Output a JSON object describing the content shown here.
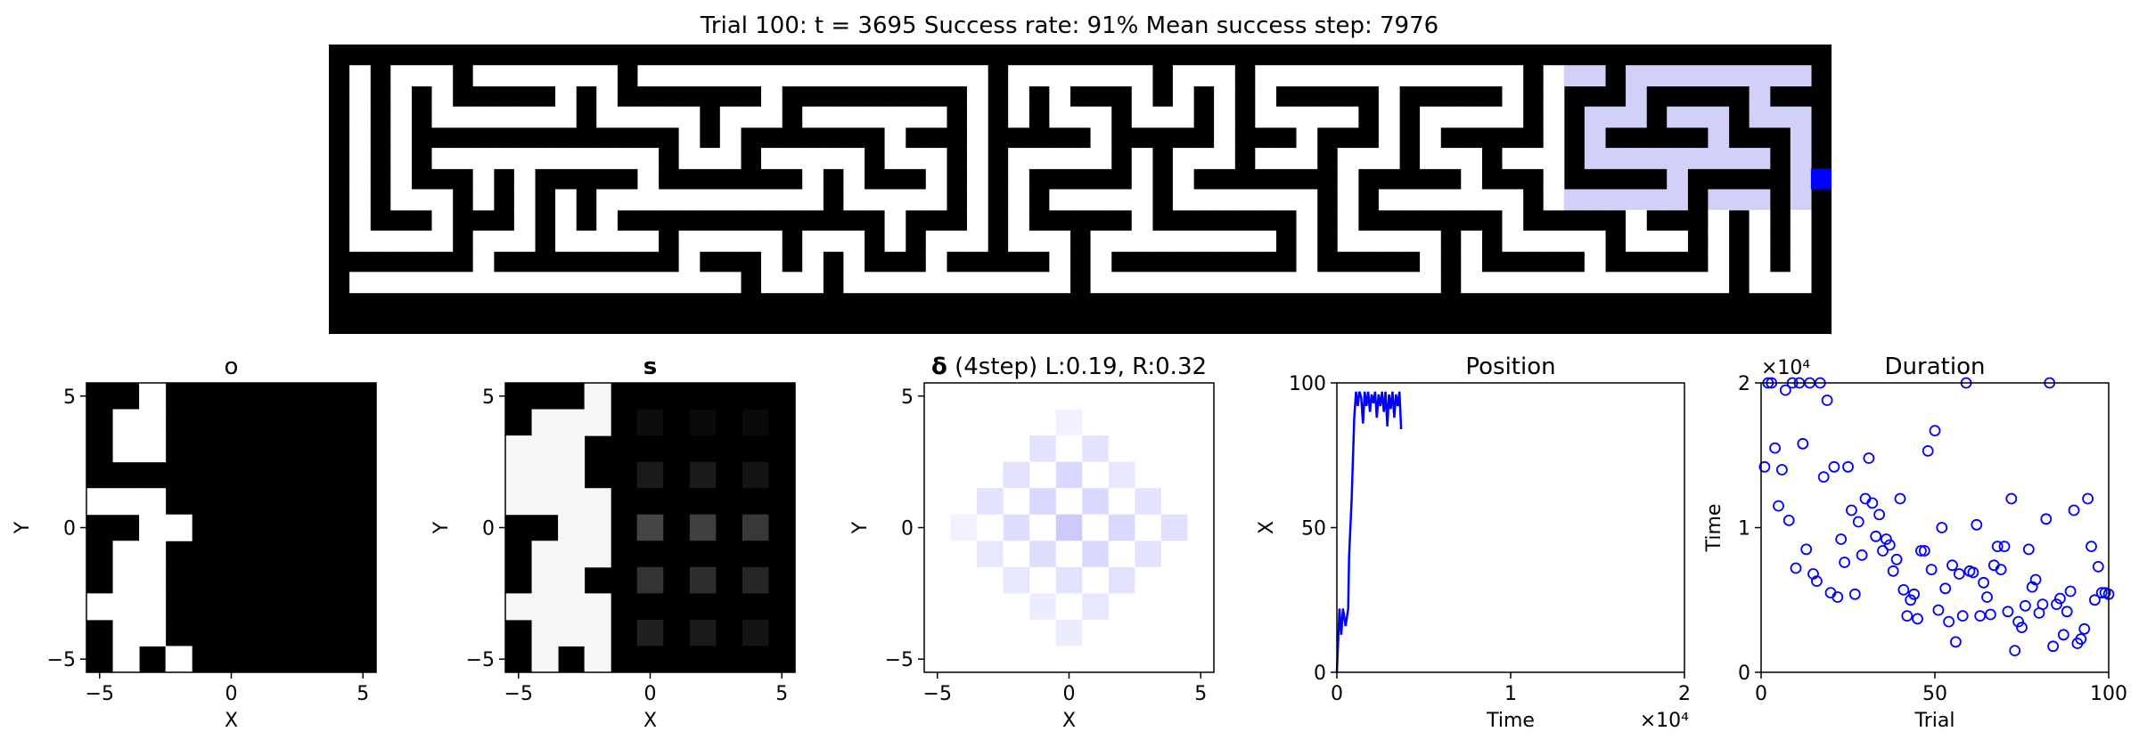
{
  "header": {
    "title": "Trial 100: t = 3695  Success rate: 91%  Mean success step: 7976"
  },
  "colors": {
    "wall": "#000000",
    "open": "#ffffff",
    "trace": "#d0d0f8",
    "agent": "#0000ff",
    "series": "#0000ff"
  },
  "panels": {
    "o": {
      "title": "o"
    },
    "s": {
      "title": "s"
    },
    "delta": {
      "title_bold": "δ",
      "title_rest": " (4step) L:0.19, R:0.32"
    },
    "position": {
      "title": "Position"
    },
    "duration": {
      "title": "Duration"
    }
  },
  "chart_data": [
    {
      "type": "heatmap",
      "name": "maze",
      "cols": 73,
      "rows": 14,
      "agent": [
        72,
        6
      ]
    },
    {
      "type": "heatmap",
      "name": "o",
      "title": "o",
      "xlabel": "X",
      "ylabel": "Y",
      "xlim": [
        -5.5,
        5.5
      ],
      "ylim": [
        -5.5,
        5.5
      ],
      "xticks": [
        -5,
        0,
        5
      ],
      "yticks": [
        -5,
        0,
        5
      ],
      "white_cells": [
        [
          -3,
          5
        ],
        [
          -4,
          4
        ],
        [
          -3,
          4
        ],
        [
          -4,
          3
        ],
        [
          -3,
          3
        ],
        [
          -5,
          1
        ],
        [
          -4,
          1
        ],
        [
          -3,
          1
        ],
        [
          -3,
          0
        ],
        [
          -2,
          0
        ],
        [
          -4,
          -1
        ],
        [
          -3,
          -1
        ],
        [
          -4,
          -2
        ],
        [
          -3,
          -2
        ],
        [
          -5,
          -3
        ],
        [
          -4,
          -3
        ],
        [
          -3,
          -3
        ],
        [
          -4,
          -4
        ],
        [
          -3,
          -4
        ],
        [
          -4,
          -5
        ],
        [
          -2,
          -5
        ]
      ]
    },
    {
      "type": "heatmap",
      "name": "s",
      "title": "s",
      "xlabel": "X",
      "ylabel": "Y",
      "xlim": [
        -5.5,
        5.5
      ],
      "ylim": [
        -5.5,
        5.5
      ],
      "xticks": [
        -5,
        0,
        5
      ],
      "yticks": [
        -5,
        0,
        5
      ],
      "white_cells": [
        [
          -2,
          5
        ],
        [
          -4,
          4
        ],
        [
          -3,
          4
        ],
        [
          -2,
          4
        ],
        [
          -5,
          3
        ],
        [
          -4,
          3
        ],
        [
          -3,
          3
        ],
        [
          -5,
          2
        ],
        [
          -4,
          2
        ],
        [
          -3,
          2
        ],
        [
          -5,
          1
        ],
        [
          -4,
          1
        ],
        [
          -3,
          1
        ],
        [
          -2,
          1
        ],
        [
          -3,
          0
        ],
        [
          -2,
          0
        ],
        [
          -4,
          -1
        ],
        [
          -3,
          -1
        ],
        [
          -2,
          -1
        ],
        [
          -4,
          -2
        ],
        [
          -3,
          -2
        ],
        [
          -5,
          -3
        ],
        [
          -4,
          -3
        ],
        [
          -3,
          -3
        ],
        [
          -2,
          -3
        ],
        [
          -4,
          -4
        ],
        [
          -3,
          -4
        ],
        [
          -2,
          -4
        ],
        [
          -4,
          -5
        ],
        [
          -2,
          -5
        ]
      ],
      "gray_cells": [
        [
          0,
          4,
          0.05
        ],
        [
          2,
          4,
          0.04
        ],
        [
          4,
          4,
          0.04
        ],
        [
          0,
          2,
          0.1
        ],
        [
          2,
          2,
          0.1
        ],
        [
          4,
          2,
          0.08
        ],
        [
          0,
          0,
          0.27
        ],
        [
          2,
          0,
          0.25
        ],
        [
          4,
          0,
          0.22
        ],
        [
          0,
          -2,
          0.2
        ],
        [
          2,
          -2,
          0.18
        ],
        [
          4,
          -2,
          0.15
        ],
        [
          0,
          -4,
          0.12
        ],
        [
          2,
          -4,
          0.1
        ],
        [
          4,
          -4,
          0.08
        ]
      ]
    },
    {
      "type": "heatmap",
      "name": "delta",
      "title": "δ (4step) L:0.19, R:0.32",
      "xlabel": "X",
      "ylabel": "Y",
      "xlim": [
        -5.5,
        5.5
      ],
      "ylim": [
        -5.5,
        5.5
      ],
      "xticks": [
        -5,
        0,
        5
      ],
      "yticks": [
        -5,
        0,
        5
      ],
      "cells": [
        [
          0,
          4,
          0.15
        ],
        [
          -1,
          3,
          0.3
        ],
        [
          1,
          3,
          0.3
        ],
        [
          -2,
          2,
          0.3
        ],
        [
          0,
          2,
          0.4
        ],
        [
          2,
          2,
          0.25
        ],
        [
          -3,
          1,
          0.3
        ],
        [
          -1,
          1,
          0.42
        ],
        [
          1,
          1,
          0.4
        ],
        [
          3,
          1,
          0.3
        ],
        [
          -4,
          0,
          0.15
        ],
        [
          -2,
          0,
          0.35
        ],
        [
          0,
          0,
          0.55
        ],
        [
          2,
          0,
          0.4
        ],
        [
          4,
          0,
          0.32
        ],
        [
          -3,
          -1,
          0.25
        ],
        [
          -1,
          -1,
          0.35
        ],
        [
          1,
          -1,
          0.4
        ],
        [
          3,
          -1,
          0.3
        ],
        [
          -2,
          -2,
          0.25
        ],
        [
          0,
          -2,
          0.3
        ],
        [
          2,
          -2,
          0.3
        ],
        [
          -1,
          -3,
          0.2
        ],
        [
          1,
          -3,
          0.25
        ],
        [
          0,
          -4,
          0.2
        ]
      ]
    },
    {
      "type": "line",
      "name": "position",
      "title": "Position",
      "xlabel": "Time",
      "ylabel": "X",
      "xlim": [
        0,
        20000
      ],
      "ylim": [
        0,
        100
      ],
      "xticks": [
        0,
        1,
        2
      ],
      "xtick_scale": "×10⁴",
      "yticks": [
        0,
        50,
        100
      ],
      "series": [
        {
          "x": [
            0,
            150,
            250,
            350,
            500,
            650,
            700,
            850,
            1000,
            1100,
            1200,
            1300,
            1400,
            1500,
            1600,
            1700,
            1800,
            1900,
            2000,
            2100,
            2200,
            2300,
            2400,
            2500,
            2600,
            2700,
            2800,
            2900,
            3000,
            3100,
            3200,
            3300,
            3400,
            3500,
            3600,
            3695
          ],
          "y": [
            0,
            22,
            13,
            22,
            16,
            22,
            40,
            60,
            88,
            97,
            92,
            97,
            95,
            86,
            97,
            92,
            97,
            90,
            96,
            93,
            97,
            88,
            96,
            92,
            97,
            90,
            97,
            85,
            96,
            91,
            97,
            88,
            96,
            92,
            97,
            84
          ]
        }
      ]
    },
    {
      "type": "scatter",
      "name": "duration",
      "title": "Duration",
      "xlabel": "Trial",
      "ylabel": "Time",
      "xlim": [
        0,
        100
      ],
      "ylim": [
        0,
        20000
      ],
      "xticks": [
        0,
        50,
        100
      ],
      "yticks": [
        0,
        1,
        2
      ],
      "ytick_scale": "×10⁴",
      "x": [
        1,
        2,
        3,
        4,
        5,
        6,
        7,
        8,
        9,
        10,
        11,
        12,
        13,
        14,
        15,
        16,
        17,
        18,
        19,
        20,
        21,
        22,
        23,
        24,
        25,
        26,
        27,
        28,
        29,
        30,
        31,
        32,
        33,
        34,
        35,
        36,
        37,
        38,
        39,
        40,
        41,
        42,
        43,
        44,
        45,
        46,
        47,
        48,
        49,
        50,
        51,
        52,
        53,
        54,
        55,
        56,
        57,
        58,
        59,
        60,
        61,
        62,
        63,
        64,
        65,
        66,
        67,
        68,
        69,
        70,
        71,
        72,
        73,
        74,
        75,
        76,
        77,
        78,
        79,
        80,
        81,
        82,
        83,
        84,
        85,
        86,
        87,
        88,
        89,
        90,
        91,
        92,
        93,
        94,
        95,
        96,
        97,
        98,
        99,
        100
      ],
      "y": [
        14200,
        20000,
        20000,
        15500,
        11500,
        14000,
        19500,
        10500,
        20000,
        7200,
        20000,
        15800,
        8500,
        20000,
        6800,
        6300,
        20000,
        13500,
        18800,
        5500,
        14200,
        5200,
        9200,
        7600,
        14200,
        11200,
        5400,
        10400,
        8100,
        12000,
        14800,
        11700,
        9400,
        10900,
        8400,
        9200,
        8800,
        7000,
        7800,
        12000,
        5700,
        3900,
        5000,
        5400,
        3700,
        8400,
        8400,
        15300,
        7100,
        16700,
        4300,
        10000,
        5800,
        3500,
        7400,
        2100,
        6800,
        3900,
        20000,
        7000,
        6900,
        10200,
        3900,
        6200,
        5200,
        4000,
        7400,
        8700,
        7100,
        8700,
        4200,
        12000,
        1500,
        3500,
        3100,
        4600,
        8500,
        5900,
        6400,
        4100,
        4700,
        10600,
        20000,
        1800,
        4700,
        5100,
        2600,
        4200,
        5600,
        11200,
        2000,
        2300,
        3000,
        12000,
        8700,
        5000,
        7300,
        5500,
        5500,
        5400
      ]
    }
  ]
}
